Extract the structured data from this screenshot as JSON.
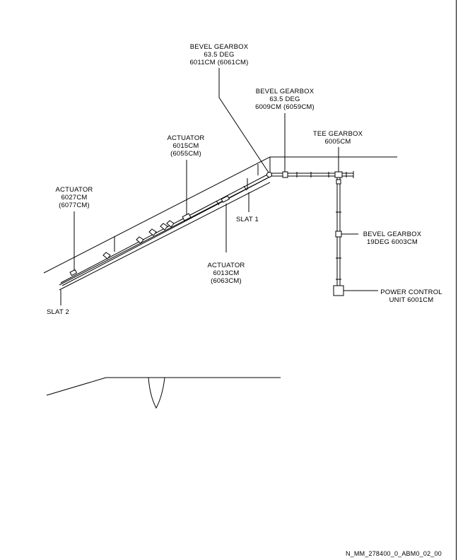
{
  "labels": {
    "bevel_gearbox_6011": [
      "BEVEL GEARBOX",
      "63.5 DEG",
      "6011CM  (6061CM)"
    ],
    "bevel_gearbox_6009": [
      "BEVEL GEARBOX",
      "63.5 DEG",
      "6009CM  (6059CM)"
    ],
    "tee_gearbox": [
      "TEE GEARBOX",
      "6005CM"
    ],
    "actuator_6015": [
      "ACTUATOR",
      "6015CM",
      "(6055CM)"
    ],
    "actuator_6027": [
      "ACTUATOR",
      "6027CM",
      "(6077CM)"
    ],
    "actuator_6013": [
      "ACTUATOR",
      "6013CM",
      "(6063CM)"
    ],
    "bevel_gearbox_6003": [
      "BEVEL GEARBOX",
      "19DEG 6003CM"
    ],
    "power_control_unit": [
      "POWER CONTROL",
      "UNIT 6001CM"
    ],
    "slat_1": "SLAT 1",
    "slat_2": "SLAT 2"
  },
  "figure_id": "N_MM_278400_0_ABM0_02_00"
}
